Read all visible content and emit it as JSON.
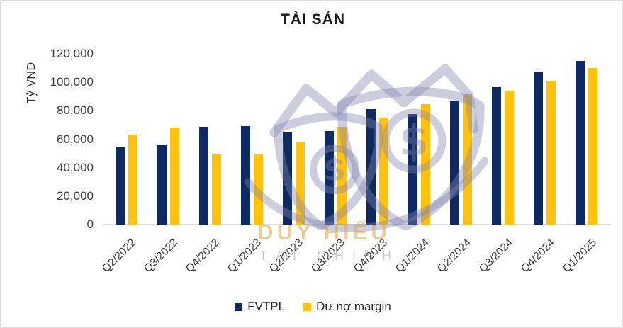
{
  "title": "TÀI SẢN",
  "y_axis": {
    "title": "Tỷ VND",
    "ticks": [
      "120,000",
      "100,000",
      "80,000",
      "60,000",
      "40,000",
      "20,000",
      "0"
    ]
  },
  "legend": [
    {
      "label": "FVTPL",
      "color": "#0e2a62"
    },
    {
      "label": "Dư nợ margin",
      "color": "#ffc20e"
    }
  ],
  "watermark": {
    "line1": "DUY HIẾU",
    "line2": "TÀI CHÍNH",
    "dollar_sign": "$",
    "logo_color": "rgba(128,132,178,0.40)"
  },
  "colors": {
    "fvtpl": "#0e2a62",
    "margin": "#ffc20e",
    "axis": "#d9d9d9",
    "text": "#3f3f3f"
  },
  "chart_data": {
    "type": "bar",
    "title": "TÀI SẢN",
    "xlabel": "",
    "ylabel": "Tỷ VND",
    "ylim": [
      0,
      120000
    ],
    "tick_interval": 20000,
    "grid": false,
    "legend_position": "bottom",
    "categories": [
      "Q2/2022",
      "Q3/2022",
      "Q4/2022",
      "Q1/2023",
      "Q2/2023",
      "Q3/2023",
      "Q4/2023",
      "Q1/2024",
      "Q2/2024",
      "Q3/2024",
      "Q4/2024",
      "Q1/2025"
    ],
    "series": [
      {
        "name": "FVTPL",
        "color": "#0e2a62",
        "values": [
          55000,
          56500,
          68500,
          69000,
          64500,
          65500,
          81000,
          77500,
          87000,
          96500,
          107000,
          115000
        ]
      },
      {
        "name": "Dư nợ margin",
        "color": "#ffc20e",
        "values": [
          63000,
          68000,
          49500,
          50000,
          58500,
          68500,
          75000,
          84500,
          91500,
          94000,
          101000,
          110000
        ]
      }
    ]
  }
}
